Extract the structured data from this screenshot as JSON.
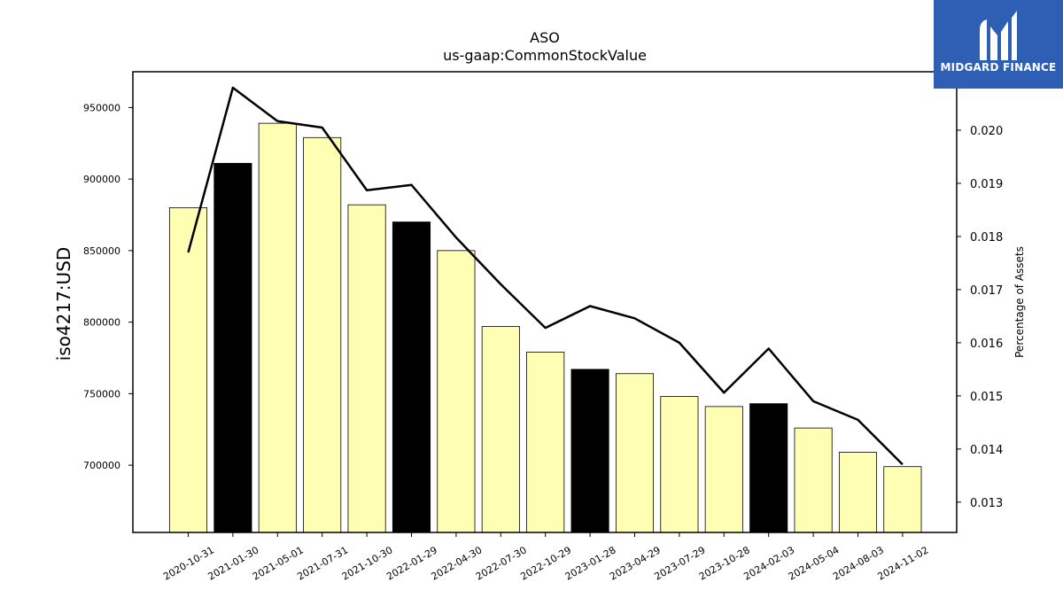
{
  "logo": {
    "text": "MIDGARD FINANCE",
    "icon": "midgard-m-logo-icon",
    "background": "#2e5fb5"
  },
  "chart_data": {
    "type": "bar",
    "title": "ASO",
    "subtitle": "us-gaap:CommonStockValue",
    "ylabel": "iso4217:USD",
    "y2label": "Percentage of Assets",
    "categories": [
      "2020-10-31",
      "2021-01-30",
      "2021-05-01",
      "2021-07-31",
      "2021-10-30",
      "2022-01-29",
      "2022-04-30",
      "2022-07-30",
      "2022-10-29",
      "2023-01-28",
      "2023-04-29",
      "2023-07-29",
      "2023-10-28",
      "2024-02-03",
      "2024-05-04",
      "2024-08-03",
      "2024-11-02"
    ],
    "series": [
      {
        "type": "bar",
        "axis": "left",
        "values": [
          880000,
          911000,
          939000,
          929000,
          882000,
          870000,
          850000,
          797000,
          779000,
          767000,
          764000,
          748000,
          741000,
          743000,
          726000,
          709000,
          699000
        ],
        "highlight": [
          false,
          true,
          false,
          false,
          false,
          true,
          false,
          false,
          false,
          true,
          false,
          false,
          false,
          true,
          false,
          false,
          false
        ]
      },
      {
        "type": "line",
        "axis": "right",
        "values": [
          0.0177,
          0.0208,
          0.02017,
          0.02005,
          0.01887,
          0.01897,
          0.01798,
          0.0171,
          0.01628,
          0.01669,
          0.01646,
          0.016,
          0.01506,
          0.01589,
          0.0149,
          0.01455,
          0.01371
        ]
      }
    ],
    "ylim": [
      653000,
      975000
    ],
    "yticks": [
      700000,
      750000,
      800000,
      850000,
      900000,
      950000
    ],
    "y2lim": [
      0.01243,
      0.0211
    ],
    "y2ticks": [
      "0.013",
      "0.014",
      "0.015",
      "0.016",
      "0.017",
      "0.018",
      "0.019",
      "0.020"
    ],
    "colors": {
      "bar": "#ffffb3",
      "bar_highlight": "#000000",
      "line": "#000000"
    },
    "grid": false,
    "legend": "none"
  }
}
